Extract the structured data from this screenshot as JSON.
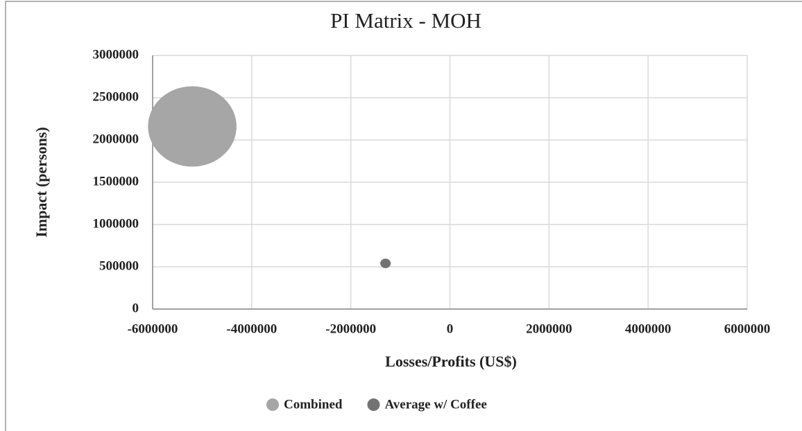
{
  "chart_data": {
    "type": "bubble",
    "title": "PI Matrix - MOH",
    "x_label": "Losses/Profits (US$)",
    "y_label": "Impact (persons)",
    "series": [
      {
        "name": "Combined",
        "color": "#a6a6a6",
        "x": [
          -5200000
        ],
        "y": [
          2160000
        ],
        "size": [
          100
        ]
      },
      {
        "name": "Average w/ Coffee",
        "color": "#737373",
        "x": [
          -1300000
        ],
        "y": [
          540000
        ],
        "size": [
          1.4
        ]
      }
    ],
    "xlim": [
      -6000000,
      6000000
    ],
    "xticks": [
      -6000000,
      -4000000,
      -2000000,
      0,
      2000000,
      4000000,
      6000000
    ],
    "ylim": [
      0,
      3000000
    ],
    "yticks": [
      0,
      500000,
      1000000,
      1500000,
      2000000,
      2500000,
      3000000
    ],
    "grid": true,
    "legend": "bottom"
  }
}
